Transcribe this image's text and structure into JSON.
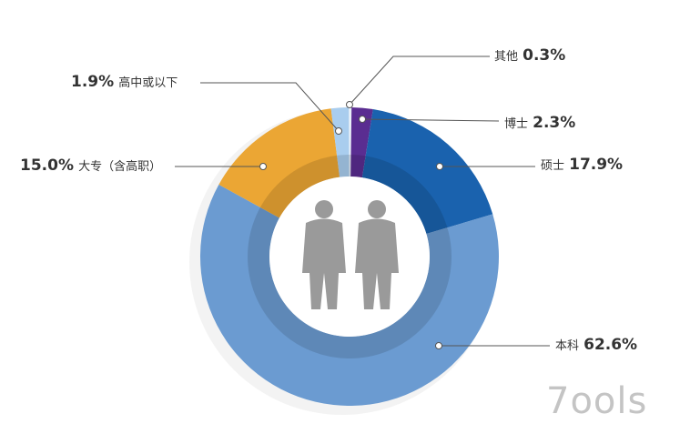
{
  "chart_data": {
    "type": "pie",
    "donut": true,
    "start": "top, clockwise",
    "slices": [
      {
        "label": "其他",
        "value": 0.3,
        "display": "0.3%",
        "color": "#e8f0f8"
      },
      {
        "label": "博士",
        "value": 2.3,
        "display": "2.3%",
        "color": "#5a2d91"
      },
      {
        "label": "硕士",
        "value": 17.9,
        "display": "17.9%",
        "color": "#1a62ae"
      },
      {
        "label": "本科",
        "value": 62.6,
        "display": "62.6%",
        "color": "#6b9bd1"
      },
      {
        "label": "大专（含高职）",
        "value": 15.0,
        "display": "15.0%",
        "color": "#eba634"
      },
      {
        "label": "高中或以下",
        "value": 1.9,
        "display": "1.9%",
        "color": "#a9cdee"
      }
    ],
    "center_icon": "two-businessmen-silhouette"
  },
  "watermark": "Tools"
}
